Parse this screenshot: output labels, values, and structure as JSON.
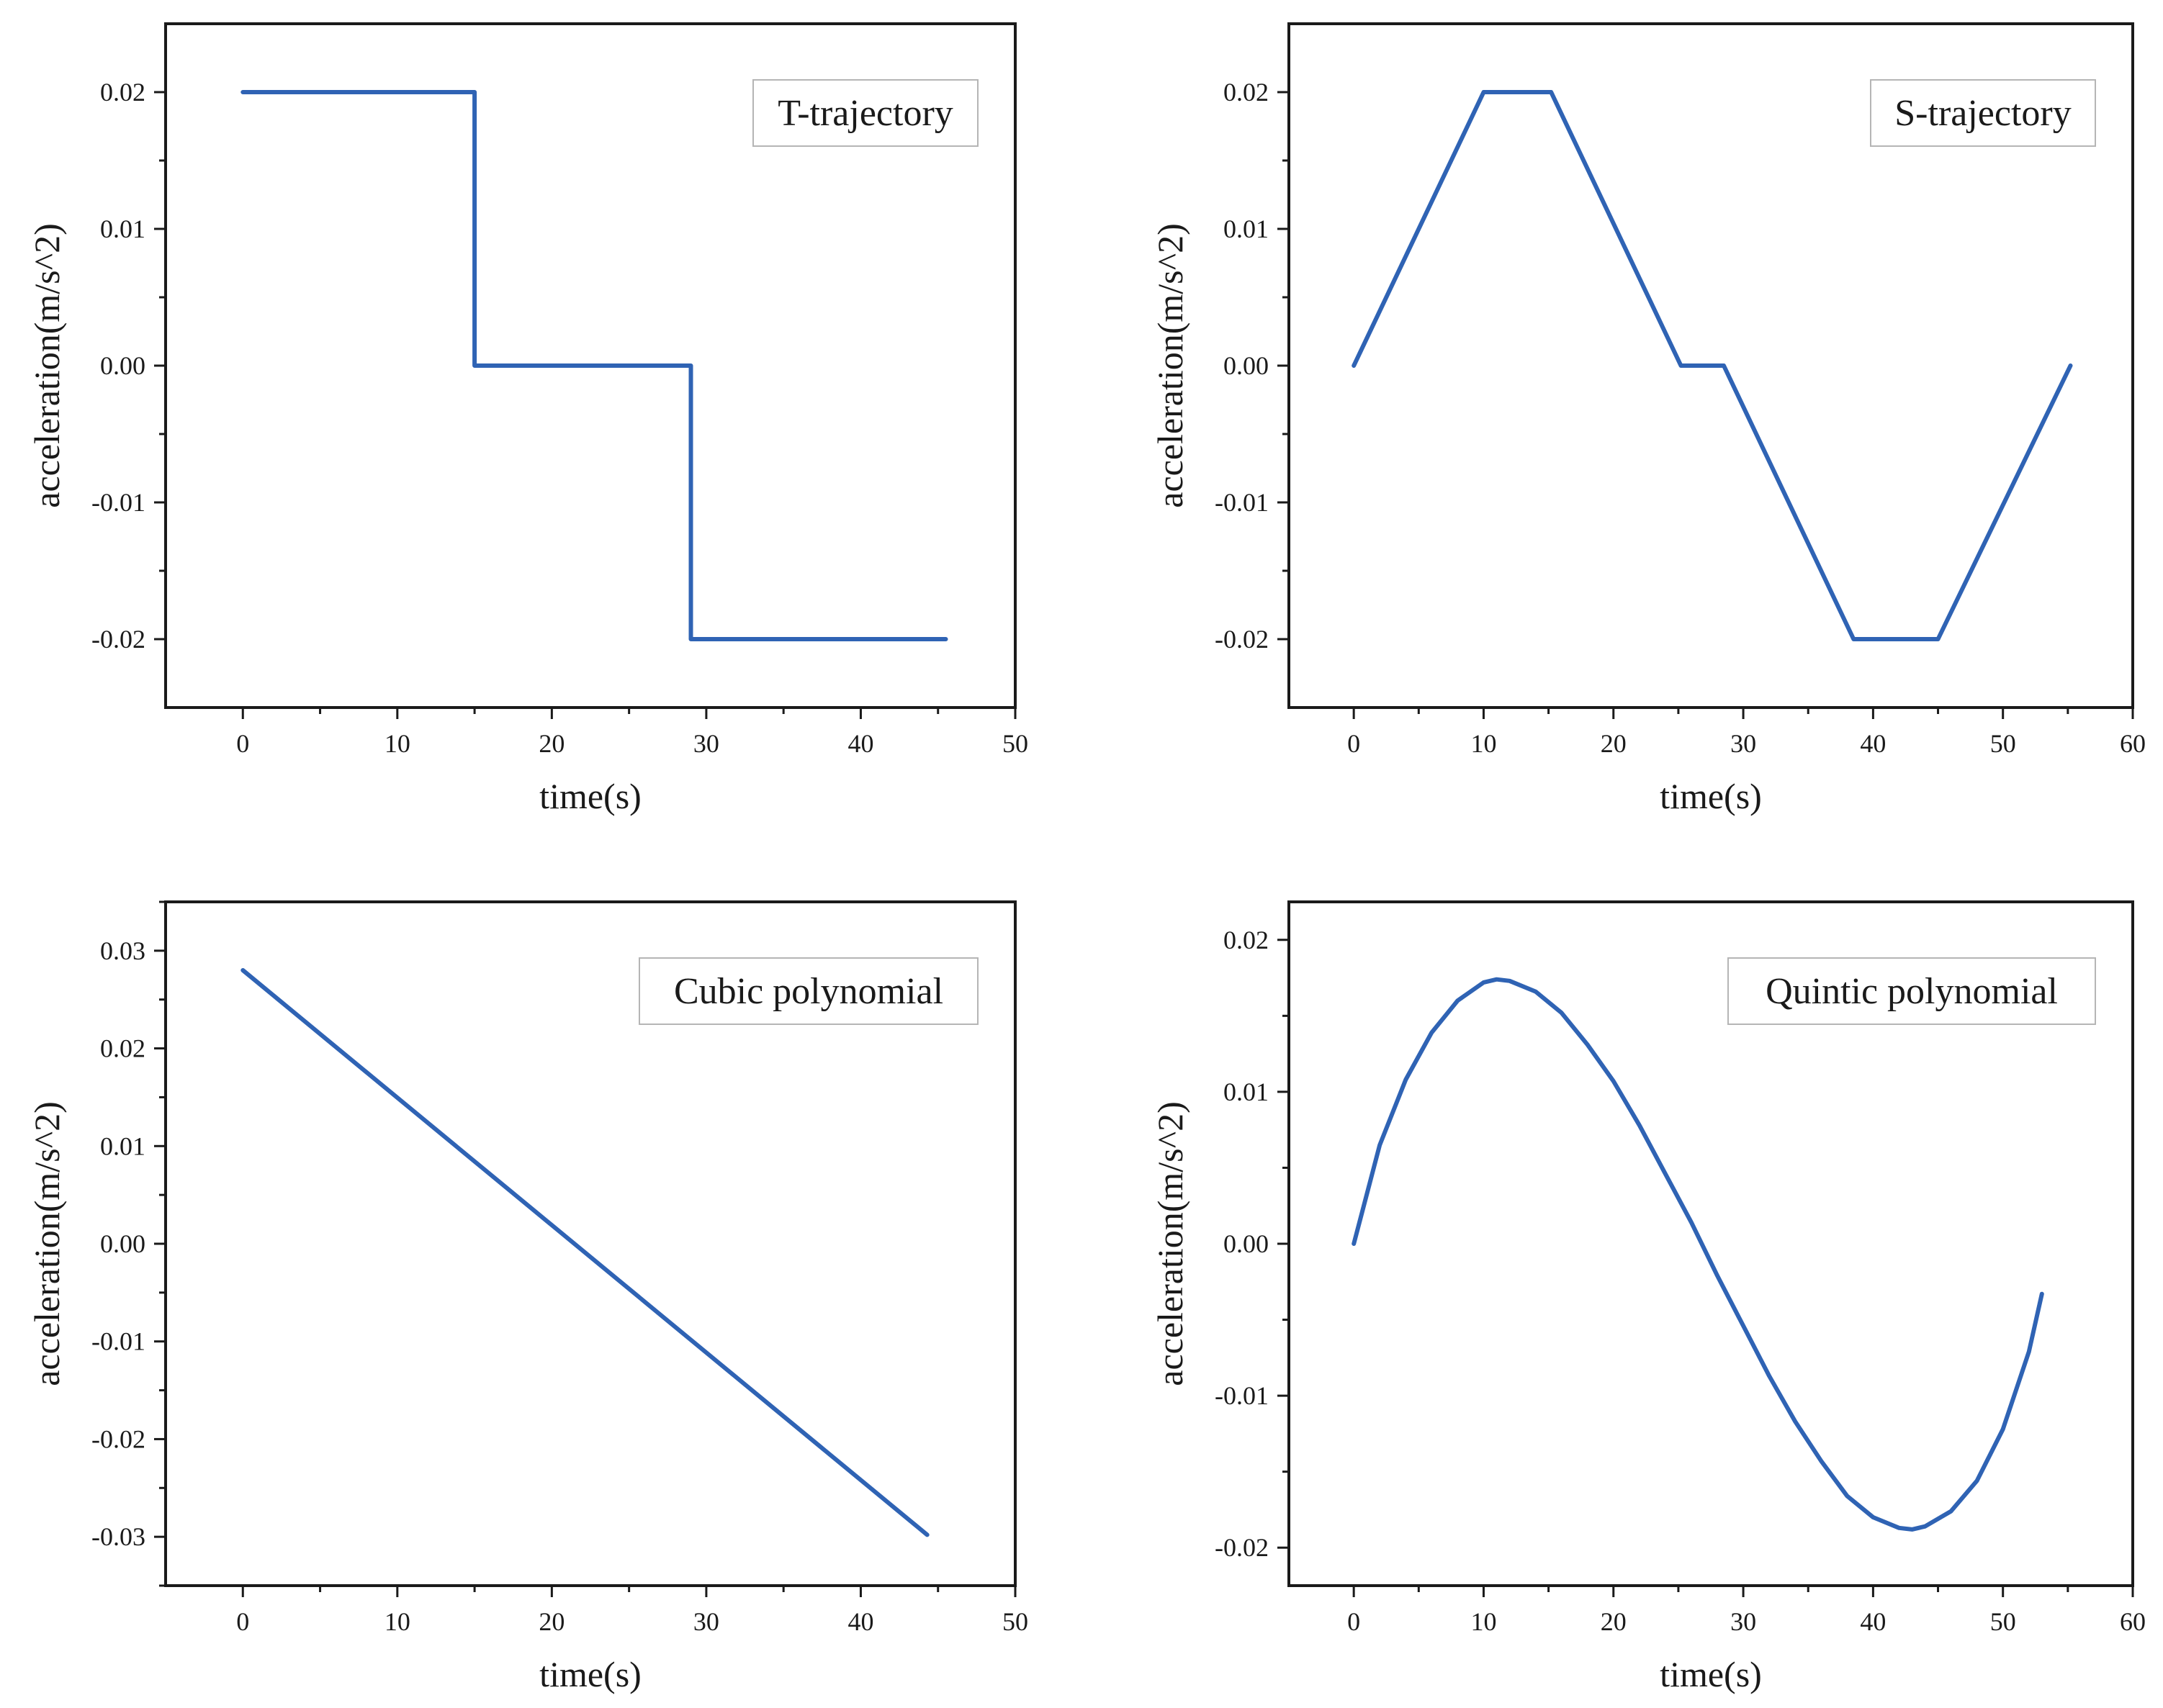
{
  "chart_data": [
    {
      "type": "line",
      "title": "",
      "legend": "T-trajectory",
      "legend_position": "top-right",
      "xlabel": "time(s)",
      "ylabel": "acceleration(m/s^2)",
      "xlim": [
        -5,
        50
      ],
      "ylim": [
        -0.025,
        0.025
      ],
      "xticks": [
        0,
        10,
        20,
        30,
        40,
        50
      ],
      "xtick_labels": [
        "0",
        "10",
        "20",
        "30",
        "40",
        "50"
      ],
      "yticks": [
        0.02,
        0.01,
        0.0,
        -0.01,
        -0.02
      ],
      "ytick_labels": [
        "0.02",
        "0.01",
        "0.00",
        "-0.01",
        "-0.02"
      ],
      "grid": false,
      "series": [
        {
          "name": "T-trajectory",
          "color": "#2f63b4",
          "x": [
            0,
            15,
            15,
            29,
            29,
            45.5
          ],
          "y": [
            0.02,
            0.02,
            0.0,
            0.0,
            -0.02,
            -0.02
          ]
        }
      ]
    },
    {
      "type": "line",
      "title": "",
      "legend": "S-trajectory",
      "legend_position": "top-right",
      "xlabel": "time(s)",
      "ylabel": "acceleration(m/s^2)",
      "xlim": [
        -5,
        60
      ],
      "ylim": [
        -0.025,
        0.025
      ],
      "xticks": [
        0,
        10,
        20,
        30,
        40,
        50,
        60
      ],
      "xtick_labels": [
        "0",
        "10",
        "20",
        "30",
        "40",
        "50",
        "60"
      ],
      "yticks": [
        0.02,
        0.01,
        0.0,
        -0.01,
        -0.02
      ],
      "ytick_labels": [
        "0.02",
        "0.01",
        "0.00",
        "-0.01",
        "-0.02"
      ],
      "grid": false,
      "series": [
        {
          "name": "S-trajectory",
          "color": "#2f63b4",
          "x": [
            0,
            10,
            15.2,
            25.2,
            28.5,
            38.5,
            45,
            55.2
          ],
          "y": [
            0.0,
            0.02,
            0.02,
            0.0,
            0.0,
            -0.02,
            -0.02,
            0.0
          ]
        }
      ]
    },
    {
      "type": "line",
      "title": "",
      "legend": "Cubic polynomial",
      "legend_position": "top-right",
      "xlabel": "time(s)",
      "ylabel": "acceleration(m/s^2)",
      "xlim": [
        -5,
        50
      ],
      "ylim": [
        -0.035,
        0.035
      ],
      "xticks": [
        0,
        10,
        20,
        30,
        40,
        50
      ],
      "xtick_labels": [
        "0",
        "10",
        "20",
        "30",
        "40",
        "50"
      ],
      "yticks": [
        0.03,
        0.02,
        0.01,
        0.0,
        -0.01,
        -0.02,
        -0.03
      ],
      "ytick_labels": [
        "0.03",
        "0.02",
        "0.01",
        "0.00",
        "-0.01",
        "-0.02",
        "-0.03"
      ],
      "grid": false,
      "series": [
        {
          "name": "Cubic polynomial",
          "color": "#2f63b4",
          "x": [
            0,
            44.3
          ],
          "y": [
            0.028,
            -0.0298
          ]
        }
      ]
    },
    {
      "type": "line",
      "title": "",
      "legend": "Quintic polynomial",
      "legend_position": "top-right",
      "xlabel": "time(s)",
      "ylabel": "acceleration(m/s^2)",
      "xlim": [
        -5,
        60
      ],
      "ylim": [
        -0.0225,
        0.0225
      ],
      "xticks": [
        0,
        10,
        20,
        30,
        40,
        50,
        60
      ],
      "xtick_labels": [
        "0",
        "10",
        "20",
        "30",
        "40",
        "50",
        "60"
      ],
      "yticks": [
        0.02,
        0.01,
        0.0,
        -0.01,
        -0.02
      ],
      "ytick_labels": [
        "0.02",
        "0.01",
        "0.00",
        "-0.01",
        "-0.02"
      ],
      "grid": false,
      "series": [
        {
          "name": "Quintic polynomial",
          "color": "#2f63b4",
          "x": [
            0,
            2,
            4,
            6,
            8,
            10,
            11,
            12,
            14,
            16,
            18,
            20,
            22,
            24,
            26,
            28,
            30,
            32,
            34,
            36,
            38,
            40,
            42,
            43,
            44,
            46,
            48,
            50,
            52,
            53
          ],
          "y": [
            0.0,
            0.0065,
            0.0108,
            0.0139,
            0.016,
            0.0172,
            0.0174,
            0.0173,
            0.0166,
            0.0152,
            0.0131,
            0.0107,
            0.0078,
            0.0046,
            0.0014,
            -0.0021,
            -0.0054,
            -0.0087,
            -0.0117,
            -0.0143,
            -0.0166,
            -0.018,
            -0.0187,
            -0.0188,
            -0.0186,
            -0.0176,
            -0.0156,
            -0.0122,
            -0.0071,
            -0.0033
          ]
        }
      ]
    }
  ]
}
